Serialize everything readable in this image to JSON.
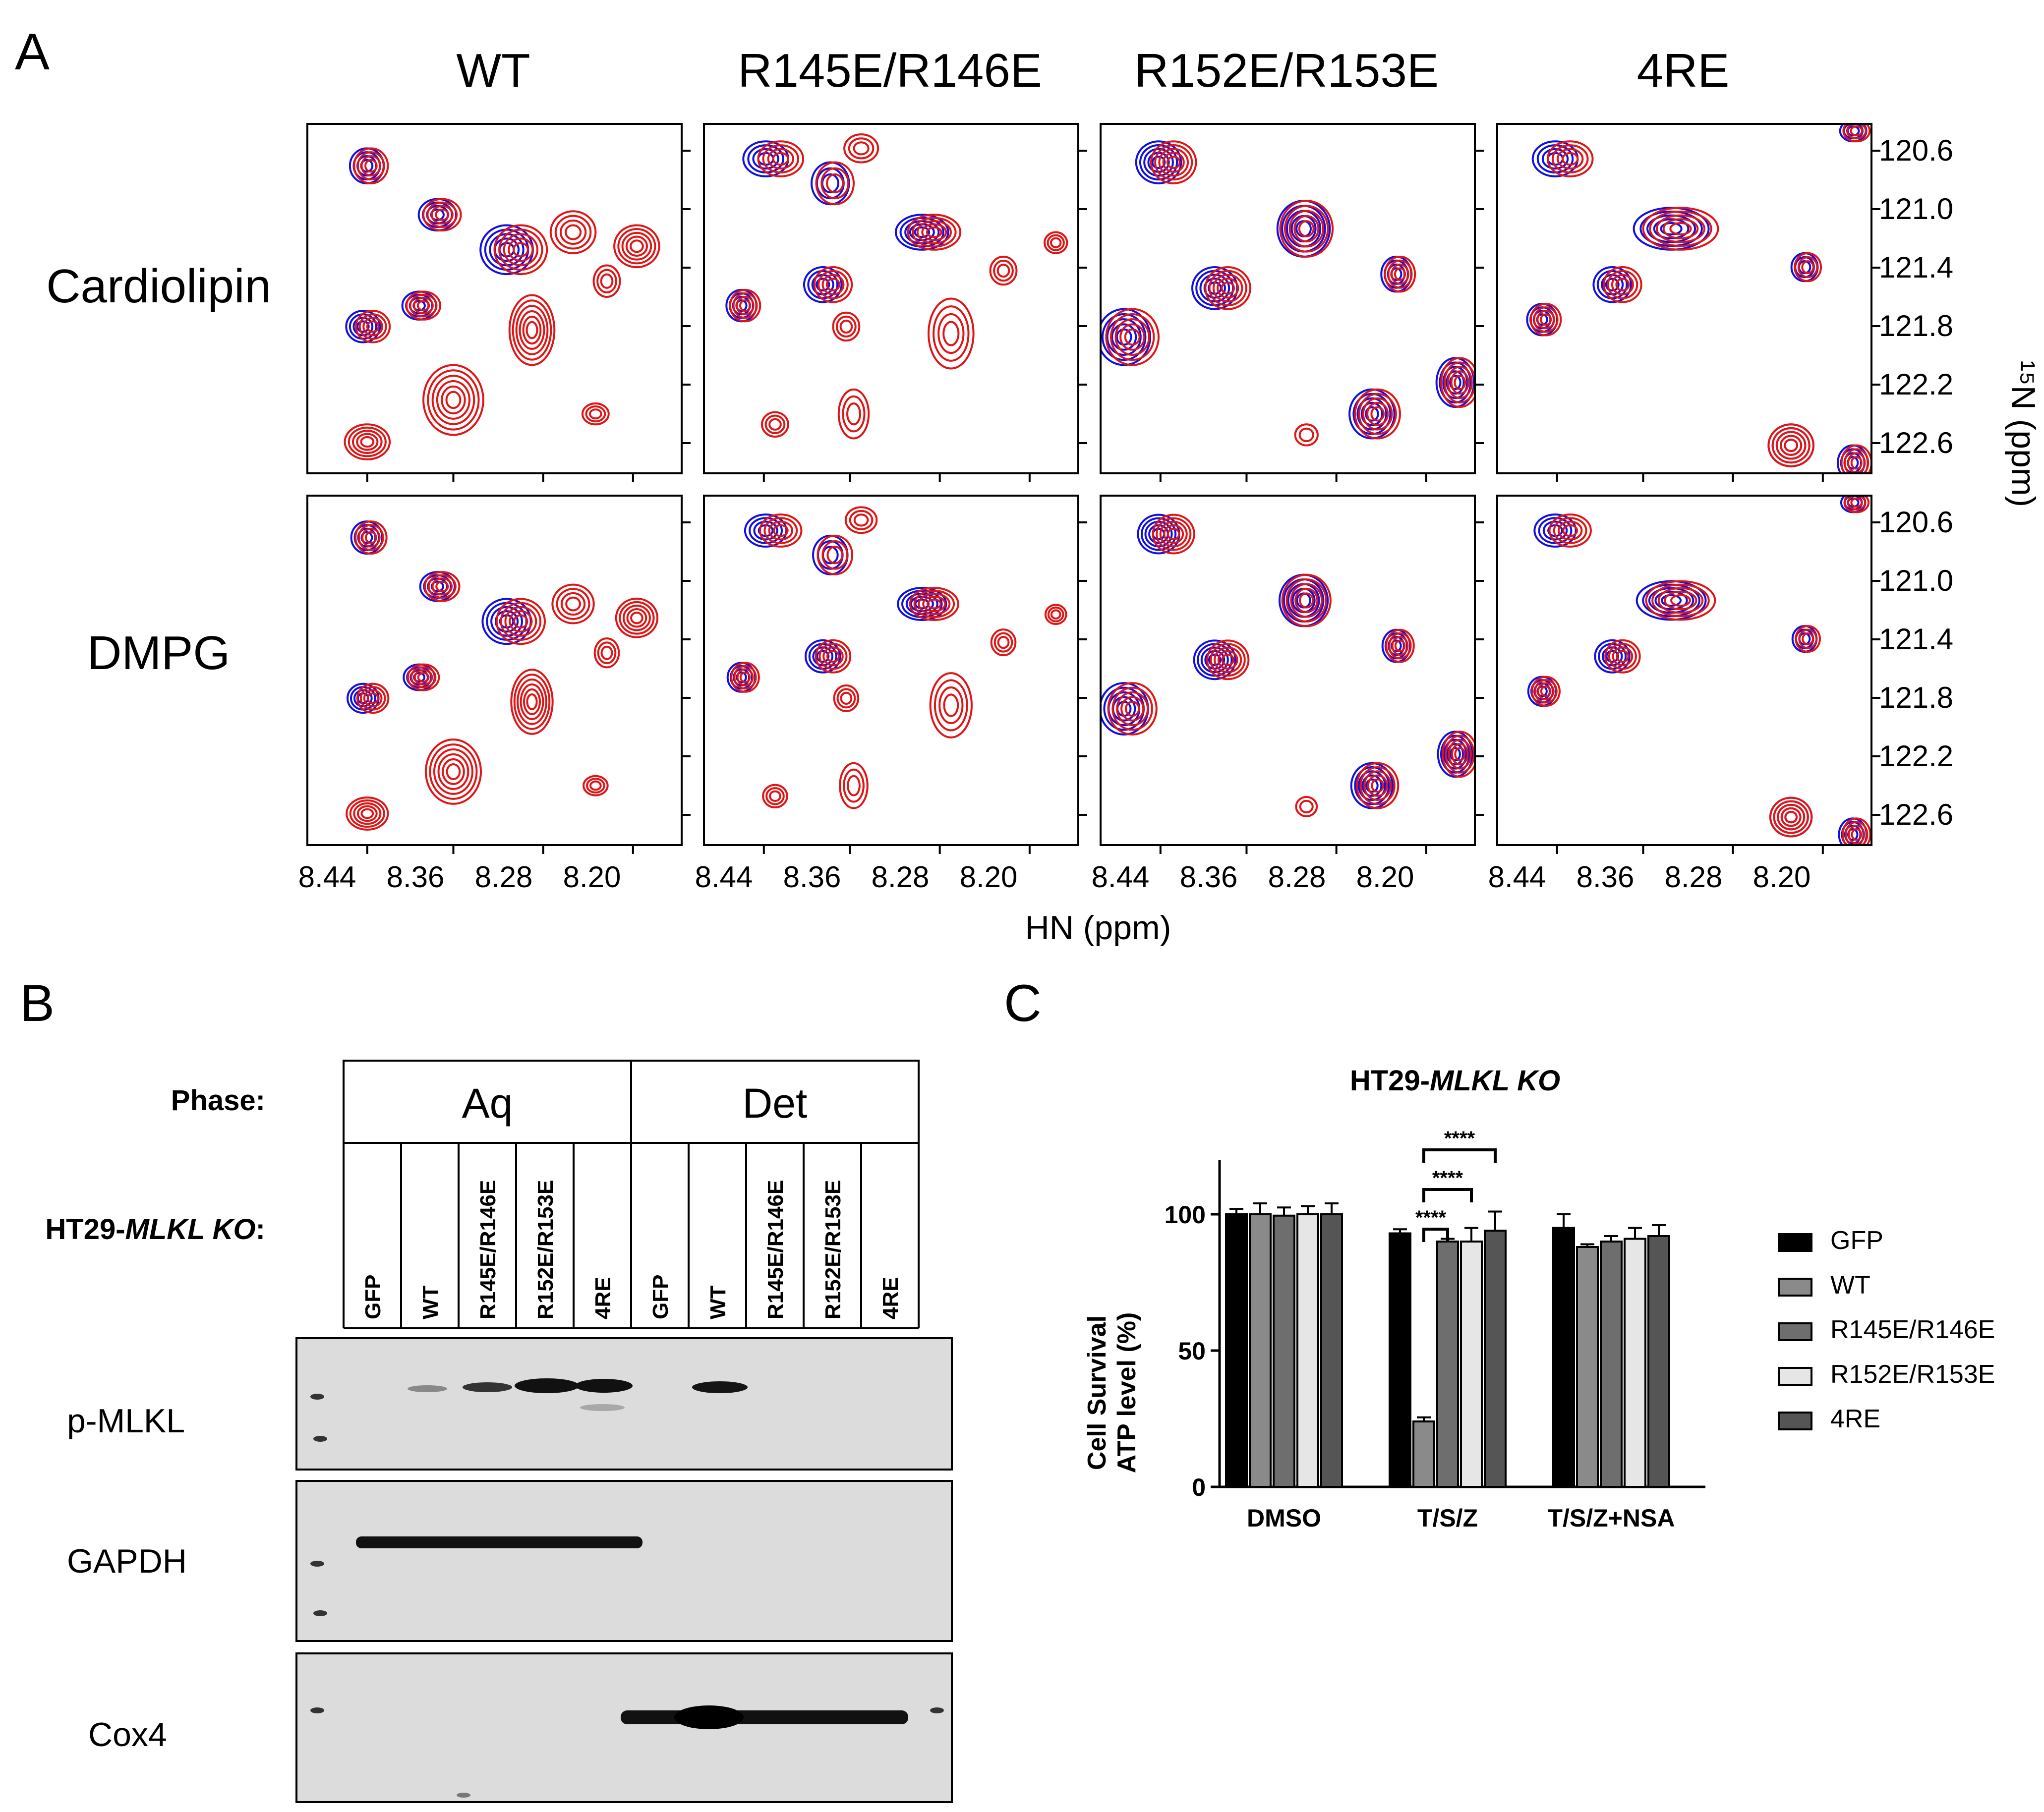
{
  "panel_a": {
    "label": "A",
    "columns": [
      "WT",
      "R145E/R146E",
      "R152E/R153E",
      "4RE"
    ],
    "rows": [
      "Cardiolipin",
      "DMPG"
    ],
    "x_ticks": [
      "8.44",
      "8.36",
      "8.28",
      "8.20"
    ],
    "y_ticks": [
      "120.6",
      "121.0",
      "121.4",
      "121.8",
      "122.2",
      "122.6"
    ],
    "x_axis_label": "HN (ppm)",
    "y_axis_label": "¹⁵N (ppm)",
    "colors": {
      "reference": "#1010e0",
      "lipid": "#e01515"
    }
  },
  "panel_b": {
    "label": "B",
    "phase_label": "Phase:",
    "line_label_prefix": "HT29-",
    "line_label_italic": "MLKL KO",
    "line_label_suffix": ":",
    "phases": [
      "Aq",
      "Det"
    ],
    "lanes": [
      "GFP",
      "WT",
      "R145E/R146E",
      "R152E/R153E",
      "4RE",
      "GFP",
      "WT",
      "R145E/R146E",
      "R152E/R153E",
      "4RE"
    ],
    "blots": [
      "p-MLKL",
      "GAPDH",
      "Cox4"
    ]
  },
  "panel_c": {
    "label": "C",
    "title_prefix": "HT29-",
    "title_italic": "MLKL KO",
    "significance": "****"
  },
  "chart_data": {
    "type": "bar",
    "title": "HT29-MLKL KO",
    "xlabel": "",
    "ylabel": "Cell Survival ATP level (%)",
    "ylabel_lines": [
      "Cell Survival",
      "ATP level (%)"
    ],
    "ylim": [
      0,
      120
    ],
    "yticks": [
      0,
      50,
      100
    ],
    "categories": [
      "DMSO",
      "T/S/Z",
      "T/S/Z+NSA"
    ],
    "series": [
      {
        "name": "GFP",
        "color": "#000000",
        "values": [
          100,
          93,
          95
        ],
        "errors": [
          2,
          1.5,
          5
        ]
      },
      {
        "name": "WT",
        "color": "#8a8a8a",
        "values": [
          100,
          24,
          88
        ],
        "errors": [
          4,
          1.5,
          1
        ]
      },
      {
        "name": "R145E/R146E",
        "color": "#6e6e6e",
        "values": [
          99.5,
          90,
          90
        ],
        "errors": [
          3,
          1,
          2
        ]
      },
      {
        "name": "R152E/R153E",
        "color": "#e6e6e6",
        "values": [
          100,
          90,
          91
        ],
        "errors": [
          3,
          5,
          4
        ]
      },
      {
        "name": "4RE",
        "color": "#555555",
        "values": [
          100,
          94,
          92
        ],
        "errors": [
          4,
          7,
          4
        ]
      }
    ],
    "comparisons": [
      {
        "group": "T/S/Z",
        "from": "WT",
        "to": "R145E/R146E",
        "label": "****"
      },
      {
        "group": "T/S/Z",
        "from": "WT",
        "to": "R152E/R153E",
        "label": "****"
      },
      {
        "group": "T/S/Z",
        "from": "WT",
        "to": "4RE",
        "label": "****"
      }
    ],
    "legend_position": "right"
  }
}
